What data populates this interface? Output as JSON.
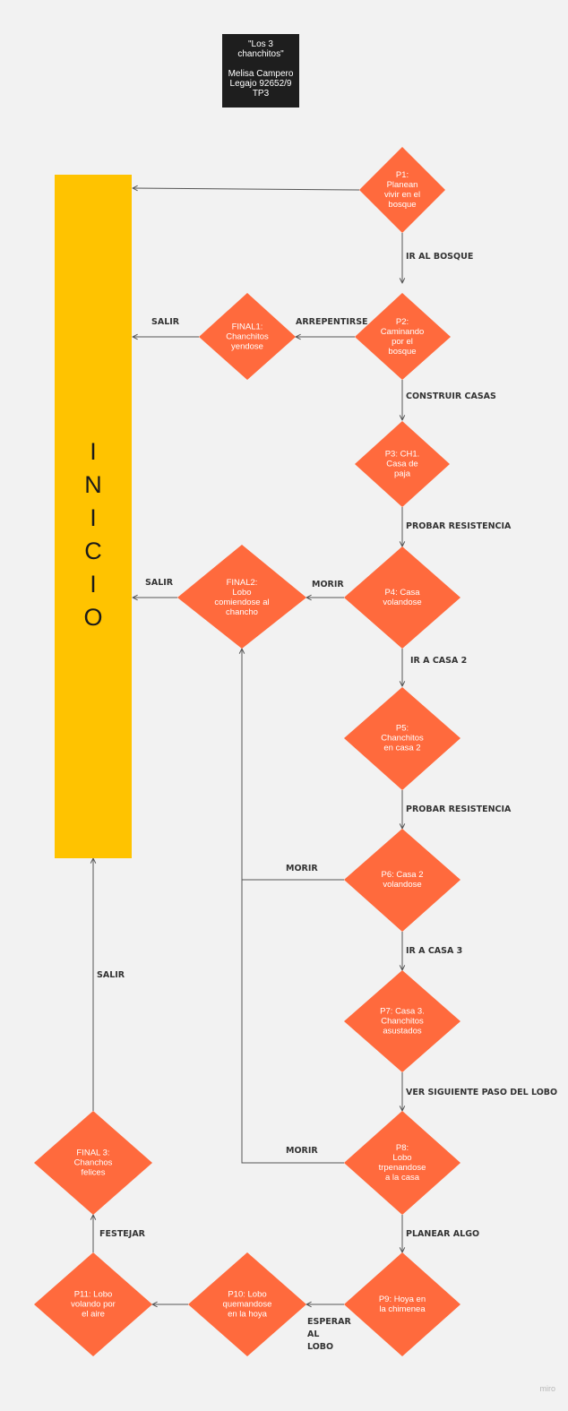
{
  "title_box": {
    "line1": "\"Los 3\nchanchitos\"",
    "line2": "Melisa Campero\nLegajo 92652/9\nTP3"
  },
  "inicio": {
    "label": "I\nN\nI\nC\nI\nO"
  },
  "nodes": {
    "p1": "P1:\nPlanean\nvivir en el\nbosque",
    "p2": "P2:\nCaminando\npor el\nbosque",
    "p3": "P3: CH1.\nCasa de\npaja",
    "p4": "P4: Casa\nvolandose",
    "p5": "P5:\nChanchitos\nen casa 2",
    "p6": "P6: Casa 2\nvolandose",
    "p7": "P7: Casa 3.\nChanchitos\nasustados",
    "p8": "P8:\nLobo\ntrpenandose\na la casa",
    "p9": "P9: Hoya en\nla chimenea",
    "p10": "P10: Lobo\nquemandose\nen la hoya",
    "p11": "P11: Lobo\nvolando por\nel aire",
    "final1": "FINAL1:\nChanchitos\nyendose",
    "final2": "FINAL2:\nLobo\ncomiendose al\nchancho",
    "final3": "FINAL 3:\nChanchos\nfelices"
  },
  "edges": {
    "ir_al_bosque": "IR AL BOSQUE",
    "arrepentirse": "ARREPENTIRSE",
    "salir_1": "SALIR",
    "construir_casas": "CONSTRUIR CASAS",
    "probar_resistencia_1": "PROBAR RESISTENCIA",
    "morir_1": "MORIR",
    "salir_2": "SALIR",
    "ir_a_casa_2": "IR A CASA 2",
    "probar_resistencia_2": "PROBAR RESISTENCIA",
    "morir_2": "MORIR",
    "ir_a_casa_3": "IR A CASA 3",
    "ver_siguiente": "VER SIGUIENTE PASO DEL LOBO",
    "morir_3": "MORIR",
    "planear_algo": "PLANEAR ALGO",
    "esperar_al_lobo": "ESPERAR\nAL\nLOBO",
    "festejar": "FESTEJAR",
    "salir_3": "SALIR"
  },
  "colors": {
    "diamond": "#ff6a3d",
    "inicio": "#ffc300",
    "title_box": "#1e1e1e",
    "background": "#f2f2f2",
    "line": "#555555"
  },
  "watermark": "miro"
}
